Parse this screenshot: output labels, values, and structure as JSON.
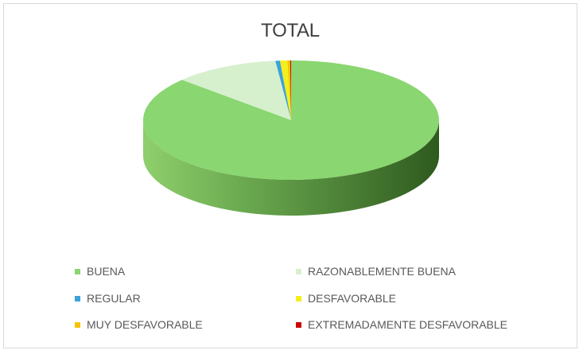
{
  "chart_data": {
    "type": "pie",
    "title": "TOTAL",
    "three_d": true,
    "legend_position": "bottom",
    "categories": [
      "BUENA",
      "RAZONABLEMENTE BUENA",
      "REGULAR",
      "DESFAVORABLE",
      "MUY DESFAVORABLE",
      "EXTREMADAMENTE DESFAVORABLE"
    ],
    "values": [
      86.8,
      11.5,
      0.5,
      0.8,
      0.3,
      0.1
    ],
    "colors": [
      "#8ad670",
      "#d6f0cd",
      "#3ba3d9",
      "#f5ee1c",
      "#f5c400",
      "#d10000"
    ]
  }
}
